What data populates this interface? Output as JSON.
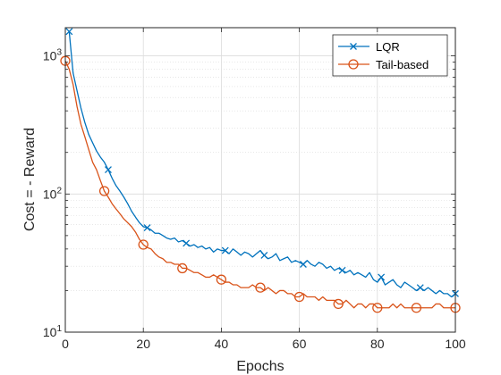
{
  "chart_data": {
    "type": "line",
    "xlabel": "Epochs",
    "ylabel": "Cost = - Reward",
    "xlim": [
      0,
      100
    ],
    "ylim": [
      10,
      1600
    ],
    "yscale": "log",
    "grid": true,
    "legend_position": "top-right",
    "x_ticks": [
      "0",
      "20",
      "40",
      "60",
      "80",
      "100"
    ],
    "y_ticks": [
      {
        "base": "10",
        "exp": "1"
      },
      {
        "base": "10",
        "exp": "2"
      },
      {
        "base": "10",
        "exp": "3"
      }
    ],
    "series": [
      {
        "name": "LQR",
        "color": "#0072BD",
        "marker": "x",
        "marker_every": 10,
        "marker_start": 1,
        "x": [
          1,
          2,
          3,
          4,
          5,
          6,
          7,
          8,
          9,
          10,
          11,
          12,
          13,
          14,
          15,
          16,
          17,
          18,
          19,
          20,
          21,
          22,
          23,
          24,
          25,
          26,
          27,
          28,
          29,
          30,
          31,
          32,
          33,
          34,
          35,
          36,
          37,
          38,
          39,
          40,
          41,
          42,
          43,
          44,
          45,
          46,
          47,
          48,
          49,
          50,
          51,
          52,
          53,
          54,
          55,
          56,
          57,
          58,
          59,
          60,
          61,
          62,
          63,
          64,
          65,
          66,
          67,
          68,
          69,
          70,
          71,
          72,
          73,
          74,
          75,
          76,
          77,
          78,
          79,
          80,
          81,
          82,
          83,
          84,
          85,
          86,
          87,
          88,
          89,
          90,
          91,
          92,
          93,
          94,
          95,
          96,
          97,
          98,
          99,
          100
        ],
        "values": [
          1500,
          750,
          560,
          420,
          330,
          270,
          235,
          205,
          185,
          170,
          150,
          130,
          115,
          105,
          95,
          85,
          75,
          68,
          62,
          58,
          57,
          55,
          52,
          52,
          50,
          48,
          47,
          48,
          45,
          46,
          44,
          42,
          43,
          41,
          42,
          40,
          41,
          38,
          40,
          39,
          39,
          37,
          40,
          38,
          36,
          38,
          37,
          35,
          37,
          39,
          36,
          34,
          35,
          37,
          33,
          34,
          35,
          32,
          33,
          32,
          31,
          33,
          31,
          30,
          32,
          31,
          29,
          30,
          28,
          29,
          28,
          27,
          28,
          26,
          27,
          26,
          25,
          27,
          24,
          23,
          25,
          22,
          23,
          24,
          22,
          21,
          23,
          22,
          21,
          20,
          21,
          20,
          21,
          20,
          19,
          20,
          19,
          19,
          18,
          19
        ]
      },
      {
        "name": "Tail-based",
        "color": "#D95319",
        "marker": "o",
        "marker_every": 10,
        "marker_start": 0,
        "x": [
          0,
          1,
          2,
          3,
          4,
          5,
          6,
          7,
          8,
          9,
          10,
          11,
          12,
          13,
          14,
          15,
          16,
          17,
          18,
          19,
          20,
          21,
          22,
          23,
          24,
          25,
          26,
          27,
          28,
          29,
          30,
          31,
          32,
          33,
          34,
          35,
          36,
          37,
          38,
          39,
          40,
          41,
          42,
          43,
          44,
          45,
          46,
          47,
          48,
          49,
          50,
          51,
          52,
          53,
          54,
          55,
          56,
          57,
          58,
          59,
          60,
          61,
          62,
          63,
          64,
          65,
          66,
          67,
          68,
          69,
          70,
          71,
          72,
          73,
          74,
          75,
          76,
          77,
          78,
          79,
          80,
          81,
          82,
          83,
          84,
          85,
          86,
          87,
          88,
          89,
          90,
          91,
          92,
          93,
          94,
          95,
          96,
          97,
          98,
          99,
          100
        ],
        "values": [
          920,
          800,
          620,
          430,
          320,
          260,
          210,
          170,
          150,
          125,
          105,
          95,
          85,
          78,
          72,
          66,
          62,
          58,
          53,
          47,
          43,
          41,
          40,
          37,
          35,
          34,
          32,
          32,
          31,
          31,
          29,
          29,
          28,
          27,
          27,
          26,
          25,
          25,
          26,
          25,
          24,
          23,
          23,
          22,
          22,
          21,
          21,
          21,
          22,
          21,
          21,
          20,
          21,
          20,
          19,
          20,
          20,
          19,
          19,
          18,
          18,
          19,
          18,
          18,
          18,
          17,
          18,
          17,
          17,
          17,
          16,
          16,
          17,
          16,
          15,
          16,
          16,
          15,
          16,
          16,
          15,
          15,
          15,
          15,
          16,
          15,
          16,
          15,
          15,
          15,
          15,
          15,
          15,
          15,
          15,
          16,
          16,
          15,
          15,
          15,
          15
        ]
      }
    ]
  }
}
